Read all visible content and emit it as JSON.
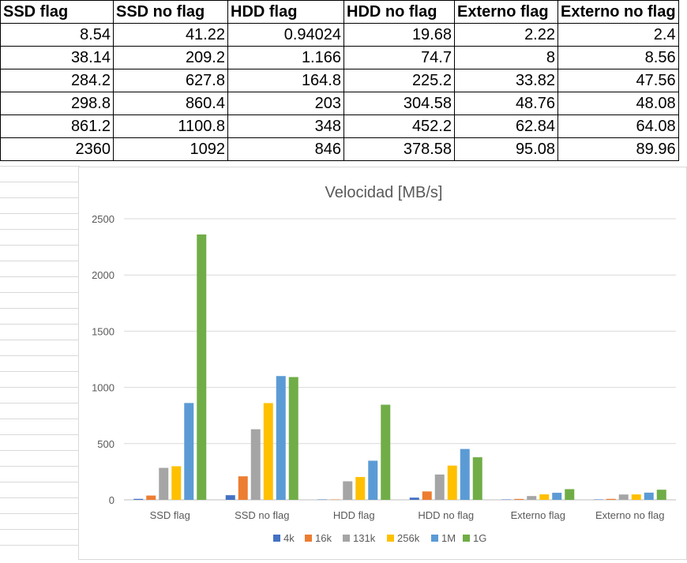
{
  "table": {
    "headers": [
      "SSD flag",
      "SSD no flag",
      "HDD flag",
      "HDD no flag",
      "Externo flag",
      "Externo no flag"
    ],
    "rows": [
      [
        "8.54",
        "41.22",
        "0.94024",
        "19.68",
        "2.22",
        "2.4"
      ],
      [
        "38.14",
        "209.2",
        "1.166",
        "74.7",
        "8",
        "8.56"
      ],
      [
        "284.2",
        "627.8",
        "164.8",
        "225.2",
        "33.82",
        "47.56"
      ],
      [
        "298.8",
        "860.4",
        "203",
        "304.58",
        "48.76",
        "48.08"
      ],
      [
        "861.2",
        "1100.8",
        "348",
        "452.2",
        "62.84",
        "64.08"
      ],
      [
        "2360",
        "1092",
        "846",
        "378.58",
        "95.08",
        "89.96"
      ]
    ]
  },
  "chart_data": {
    "type": "bar",
    "title": "Velocidad [MB/s]",
    "xlabel": "",
    "ylabel": "",
    "categories": [
      "SSD flag",
      "SSD no flag",
      "HDD flag",
      "HDD no flag",
      "Externo flag",
      "Externo no flag"
    ],
    "series": [
      {
        "name": "4k",
        "color": "#4472c4",
        "values": [
          8.54,
          41.22,
          0.94024,
          19.68,
          2.22,
          2.4
        ]
      },
      {
        "name": "16k",
        "color": "#ed7d31",
        "values": [
          38.14,
          209.2,
          1.166,
          74.7,
          8,
          8.56
        ]
      },
      {
        "name": "131k",
        "color": "#a5a5a5",
        "values": [
          284.2,
          627.8,
          164.8,
          225.2,
          33.82,
          47.56
        ]
      },
      {
        "name": "256k",
        "color": "#ffc000",
        "values": [
          298.8,
          860.4,
          203,
          304.58,
          48.76,
          48.08
        ]
      },
      {
        "name": "1M",
        "color": "#5b9bd5",
        "values": [
          861.2,
          1100.8,
          348,
          452.2,
          62.84,
          64.08
        ]
      },
      {
        "name": "1G",
        "color": "#70ad47",
        "values": [
          2360,
          1092,
          846,
          378.58,
          95.08,
          89.96
        ]
      }
    ],
    "ylim": [
      0,
      2500
    ],
    "yticks": [
      0,
      500,
      1000,
      1500,
      2000,
      2500
    ],
    "grid": true,
    "legend": "bottom"
  }
}
